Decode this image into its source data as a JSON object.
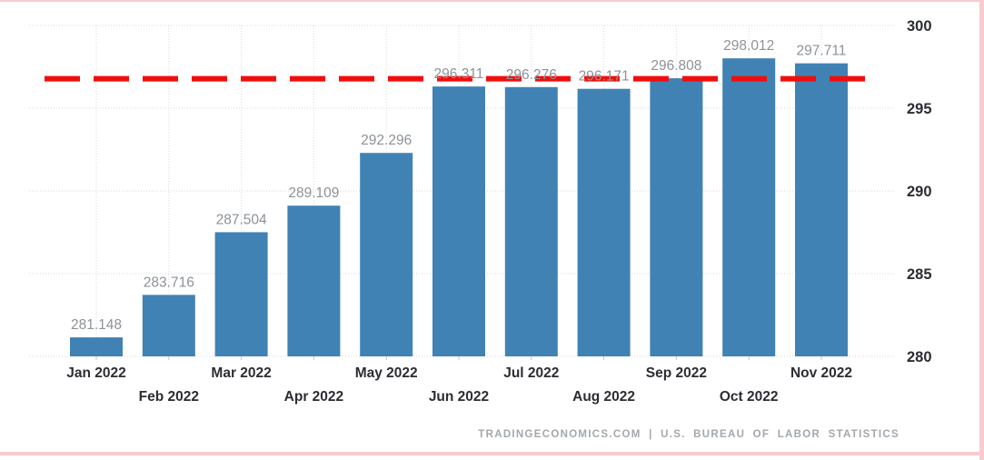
{
  "chart_data": {
    "type": "bar",
    "title": "",
    "xlabel": "",
    "ylabel": "",
    "categories": [
      "Jan 2022",
      "Feb 2022",
      "Mar 2022",
      "Apr 2022",
      "May 2022",
      "Jun 2022",
      "Jul 2022",
      "Aug 2022",
      "Sep 2022",
      "Oct 2022",
      "Nov 2022"
    ],
    "values": [
      281.148,
      283.716,
      287.504,
      289.109,
      292.296,
      296.311,
      296.276,
      296.171,
      296.808,
      298.012,
      297.711
    ],
    "value_labels": [
      "281.148",
      "283.716",
      "287.504",
      "289.109",
      "292.296",
      "296.311",
      "296.276",
      "296.171",
      "296.808",
      "298.012",
      "297.711"
    ],
    "ylim": [
      280,
      300
    ],
    "yticks": [
      280,
      285,
      290,
      295,
      300
    ],
    "y_axis_side": "right",
    "grid": true,
    "legend": false,
    "reference_line": {
      "value": 296.78,
      "color": "#f20d0d",
      "style": "dashed"
    },
    "bar_color": "#4182b4",
    "value_label_color": "#8d9298",
    "axis_label_color": "#2b2d33",
    "gridline_color": "#dadada"
  },
  "footer": {
    "attribution": "TRADINGECONOMICS.COM  |  U.S. BUREAU OF LABOR STATISTICS"
  },
  "frame": {
    "border_color": "#f8cccc"
  }
}
